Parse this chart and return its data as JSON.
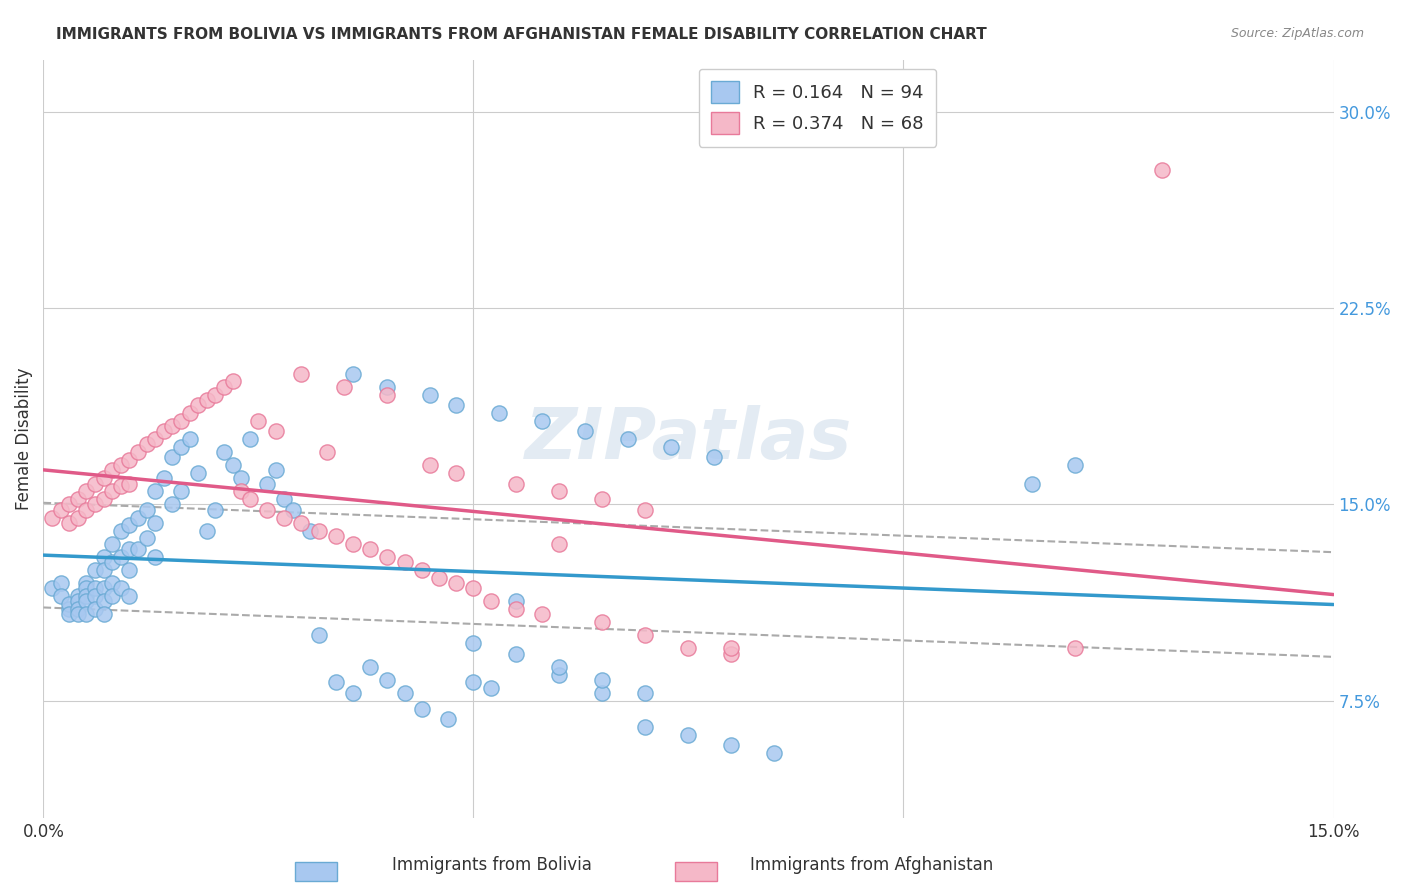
{
  "title": "IMMIGRANTS FROM BOLIVIA VS IMMIGRANTS FROM AFGHANISTAN FEMALE DISABILITY CORRELATION CHART",
  "source": "Source: ZipAtlas.com",
  "xlabel": "",
  "ylabel": "Female Disability",
  "xlim": [
    0.0,
    0.15
  ],
  "ylim": [
    0.03,
    0.32
  ],
  "yticks": [
    0.075,
    0.15,
    0.225,
    0.3
  ],
  "ytick_labels": [
    "7.5%",
    "15.0%",
    "22.5%",
    "30.0%"
  ],
  "xticks": [
    0.0,
    0.05,
    0.1,
    0.15
  ],
  "xtick_labels": [
    "0.0%",
    "",
    "",
    "15.0%"
  ],
  "bolivia_color": "#a8c8f0",
  "bolivia_edge": "#6aaad4",
  "afghanistan_color": "#f5b8c8",
  "afghanistan_edge": "#e87a9a",
  "bolivia_R": 0.164,
  "bolivia_N": 94,
  "afghanistan_R": 0.374,
  "afghanistan_N": 68,
  "legend_R_color": "#4499dd",
  "legend_N_color": "#ee4444",
  "watermark": "ZIPatlas",
  "bolivia_scatter_x": [
    0.001,
    0.002,
    0.002,
    0.003,
    0.003,
    0.003,
    0.004,
    0.004,
    0.004,
    0.004,
    0.005,
    0.005,
    0.005,
    0.005,
    0.005,
    0.006,
    0.006,
    0.006,
    0.006,
    0.007,
    0.007,
    0.007,
    0.007,
    0.007,
    0.008,
    0.008,
    0.008,
    0.008,
    0.009,
    0.009,
    0.009,
    0.01,
    0.01,
    0.01,
    0.01,
    0.011,
    0.011,
    0.012,
    0.012,
    0.013,
    0.013,
    0.013,
    0.014,
    0.015,
    0.015,
    0.016,
    0.016,
    0.017,
    0.018,
    0.019,
    0.02,
    0.021,
    0.022,
    0.023,
    0.024,
    0.026,
    0.027,
    0.028,
    0.029,
    0.031,
    0.032,
    0.034,
    0.036,
    0.038,
    0.04,
    0.042,
    0.044,
    0.047,
    0.05,
    0.052,
    0.055,
    0.06,
    0.065,
    0.07,
    0.075,
    0.08,
    0.085,
    0.036,
    0.04,
    0.045,
    0.048,
    0.053,
    0.058,
    0.063,
    0.068,
    0.073,
    0.078,
    0.05,
    0.055,
    0.06,
    0.065,
    0.07,
    0.12,
    0.115
  ],
  "bolivia_scatter_y": [
    0.118,
    0.12,
    0.115,
    0.11,
    0.112,
    0.108,
    0.115,
    0.113,
    0.11,
    0.108,
    0.12,
    0.118,
    0.115,
    0.113,
    0.108,
    0.125,
    0.118,
    0.115,
    0.11,
    0.13,
    0.125,
    0.118,
    0.113,
    0.108,
    0.135,
    0.128,
    0.12,
    0.115,
    0.14,
    0.13,
    0.118,
    0.142,
    0.133,
    0.125,
    0.115,
    0.145,
    0.133,
    0.148,
    0.137,
    0.155,
    0.143,
    0.13,
    0.16,
    0.168,
    0.15,
    0.172,
    0.155,
    0.175,
    0.162,
    0.14,
    0.148,
    0.17,
    0.165,
    0.16,
    0.175,
    0.158,
    0.163,
    0.152,
    0.148,
    0.14,
    0.1,
    0.082,
    0.078,
    0.088,
    0.083,
    0.078,
    0.072,
    0.068,
    0.082,
    0.08,
    0.113,
    0.085,
    0.078,
    0.065,
    0.062,
    0.058,
    0.055,
    0.2,
    0.195,
    0.192,
    0.188,
    0.185,
    0.182,
    0.178,
    0.175,
    0.172,
    0.168,
    0.097,
    0.093,
    0.088,
    0.083,
    0.078,
    0.165,
    0.158
  ],
  "afghanistan_scatter_x": [
    0.001,
    0.002,
    0.003,
    0.003,
    0.004,
    0.004,
    0.005,
    0.005,
    0.006,
    0.006,
    0.007,
    0.007,
    0.008,
    0.008,
    0.009,
    0.009,
    0.01,
    0.01,
    0.011,
    0.012,
    0.013,
    0.014,
    0.015,
    0.016,
    0.017,
    0.018,
    0.019,
    0.02,
    0.021,
    0.022,
    0.023,
    0.024,
    0.026,
    0.028,
    0.03,
    0.032,
    0.034,
    0.036,
    0.038,
    0.04,
    0.042,
    0.044,
    0.046,
    0.048,
    0.05,
    0.052,
    0.055,
    0.058,
    0.06,
    0.065,
    0.07,
    0.075,
    0.08,
    0.12,
    0.13,
    0.03,
    0.035,
    0.04,
    0.025,
    0.027,
    0.033,
    0.045,
    0.048,
    0.055,
    0.06,
    0.065,
    0.07,
    0.08
  ],
  "afghanistan_scatter_y": [
    0.145,
    0.148,
    0.15,
    0.143,
    0.152,
    0.145,
    0.155,
    0.148,
    0.158,
    0.15,
    0.16,
    0.152,
    0.163,
    0.155,
    0.165,
    0.157,
    0.167,
    0.158,
    0.17,
    0.173,
    0.175,
    0.178,
    0.18,
    0.182,
    0.185,
    0.188,
    0.19,
    0.192,
    0.195,
    0.197,
    0.155,
    0.152,
    0.148,
    0.145,
    0.143,
    0.14,
    0.138,
    0.135,
    0.133,
    0.13,
    0.128,
    0.125,
    0.122,
    0.12,
    0.118,
    0.113,
    0.11,
    0.108,
    0.135,
    0.105,
    0.1,
    0.095,
    0.093,
    0.095,
    0.278,
    0.2,
    0.195,
    0.192,
    0.182,
    0.178,
    0.17,
    0.165,
    0.162,
    0.158,
    0.155,
    0.152,
    0.148,
    0.095
  ]
}
